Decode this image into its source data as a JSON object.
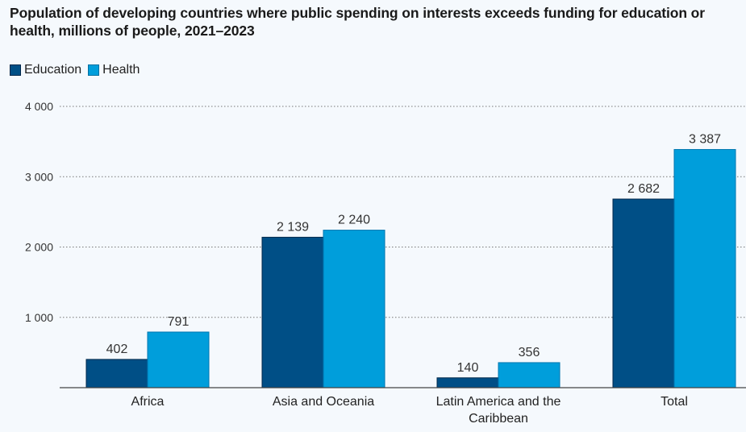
{
  "chart_data": {
    "type": "bar",
    "title": "Population of developing countries where public spending on interests exceeds funding for education or health, millions of people, 2021–2023",
    "categories": [
      "Africa",
      "Asia and Oceania",
      "Latin America and the Caribbean",
      "Total"
    ],
    "category_lines": [
      [
        "Africa"
      ],
      [
        "Asia and Oceania"
      ],
      [
        "Latin America and the",
        "Caribbean"
      ],
      [
        "Total"
      ]
    ],
    "series": [
      {
        "name": "Education",
        "color": "#004f86",
        "values": [
          402,
          2139,
          140,
          2682
        ],
        "labels": [
          "402",
          "2 139",
          "140",
          "2 682"
        ]
      },
      {
        "name": "Health",
        "color": "#009edb",
        "values": [
          791,
          2240,
          356,
          3387
        ],
        "labels": [
          "791",
          "2 240",
          "356",
          "3 387"
        ]
      }
    ],
    "yticks": [
      1000,
      2000,
      3000,
      4000
    ],
    "ytick_labels": [
      "1 000",
      "2 000",
      "3 000",
      "4 000"
    ],
    "ylim": [
      0,
      4000
    ],
    "xlabel": "",
    "ylabel": "",
    "grid": true,
    "legend_position": "top-left"
  }
}
